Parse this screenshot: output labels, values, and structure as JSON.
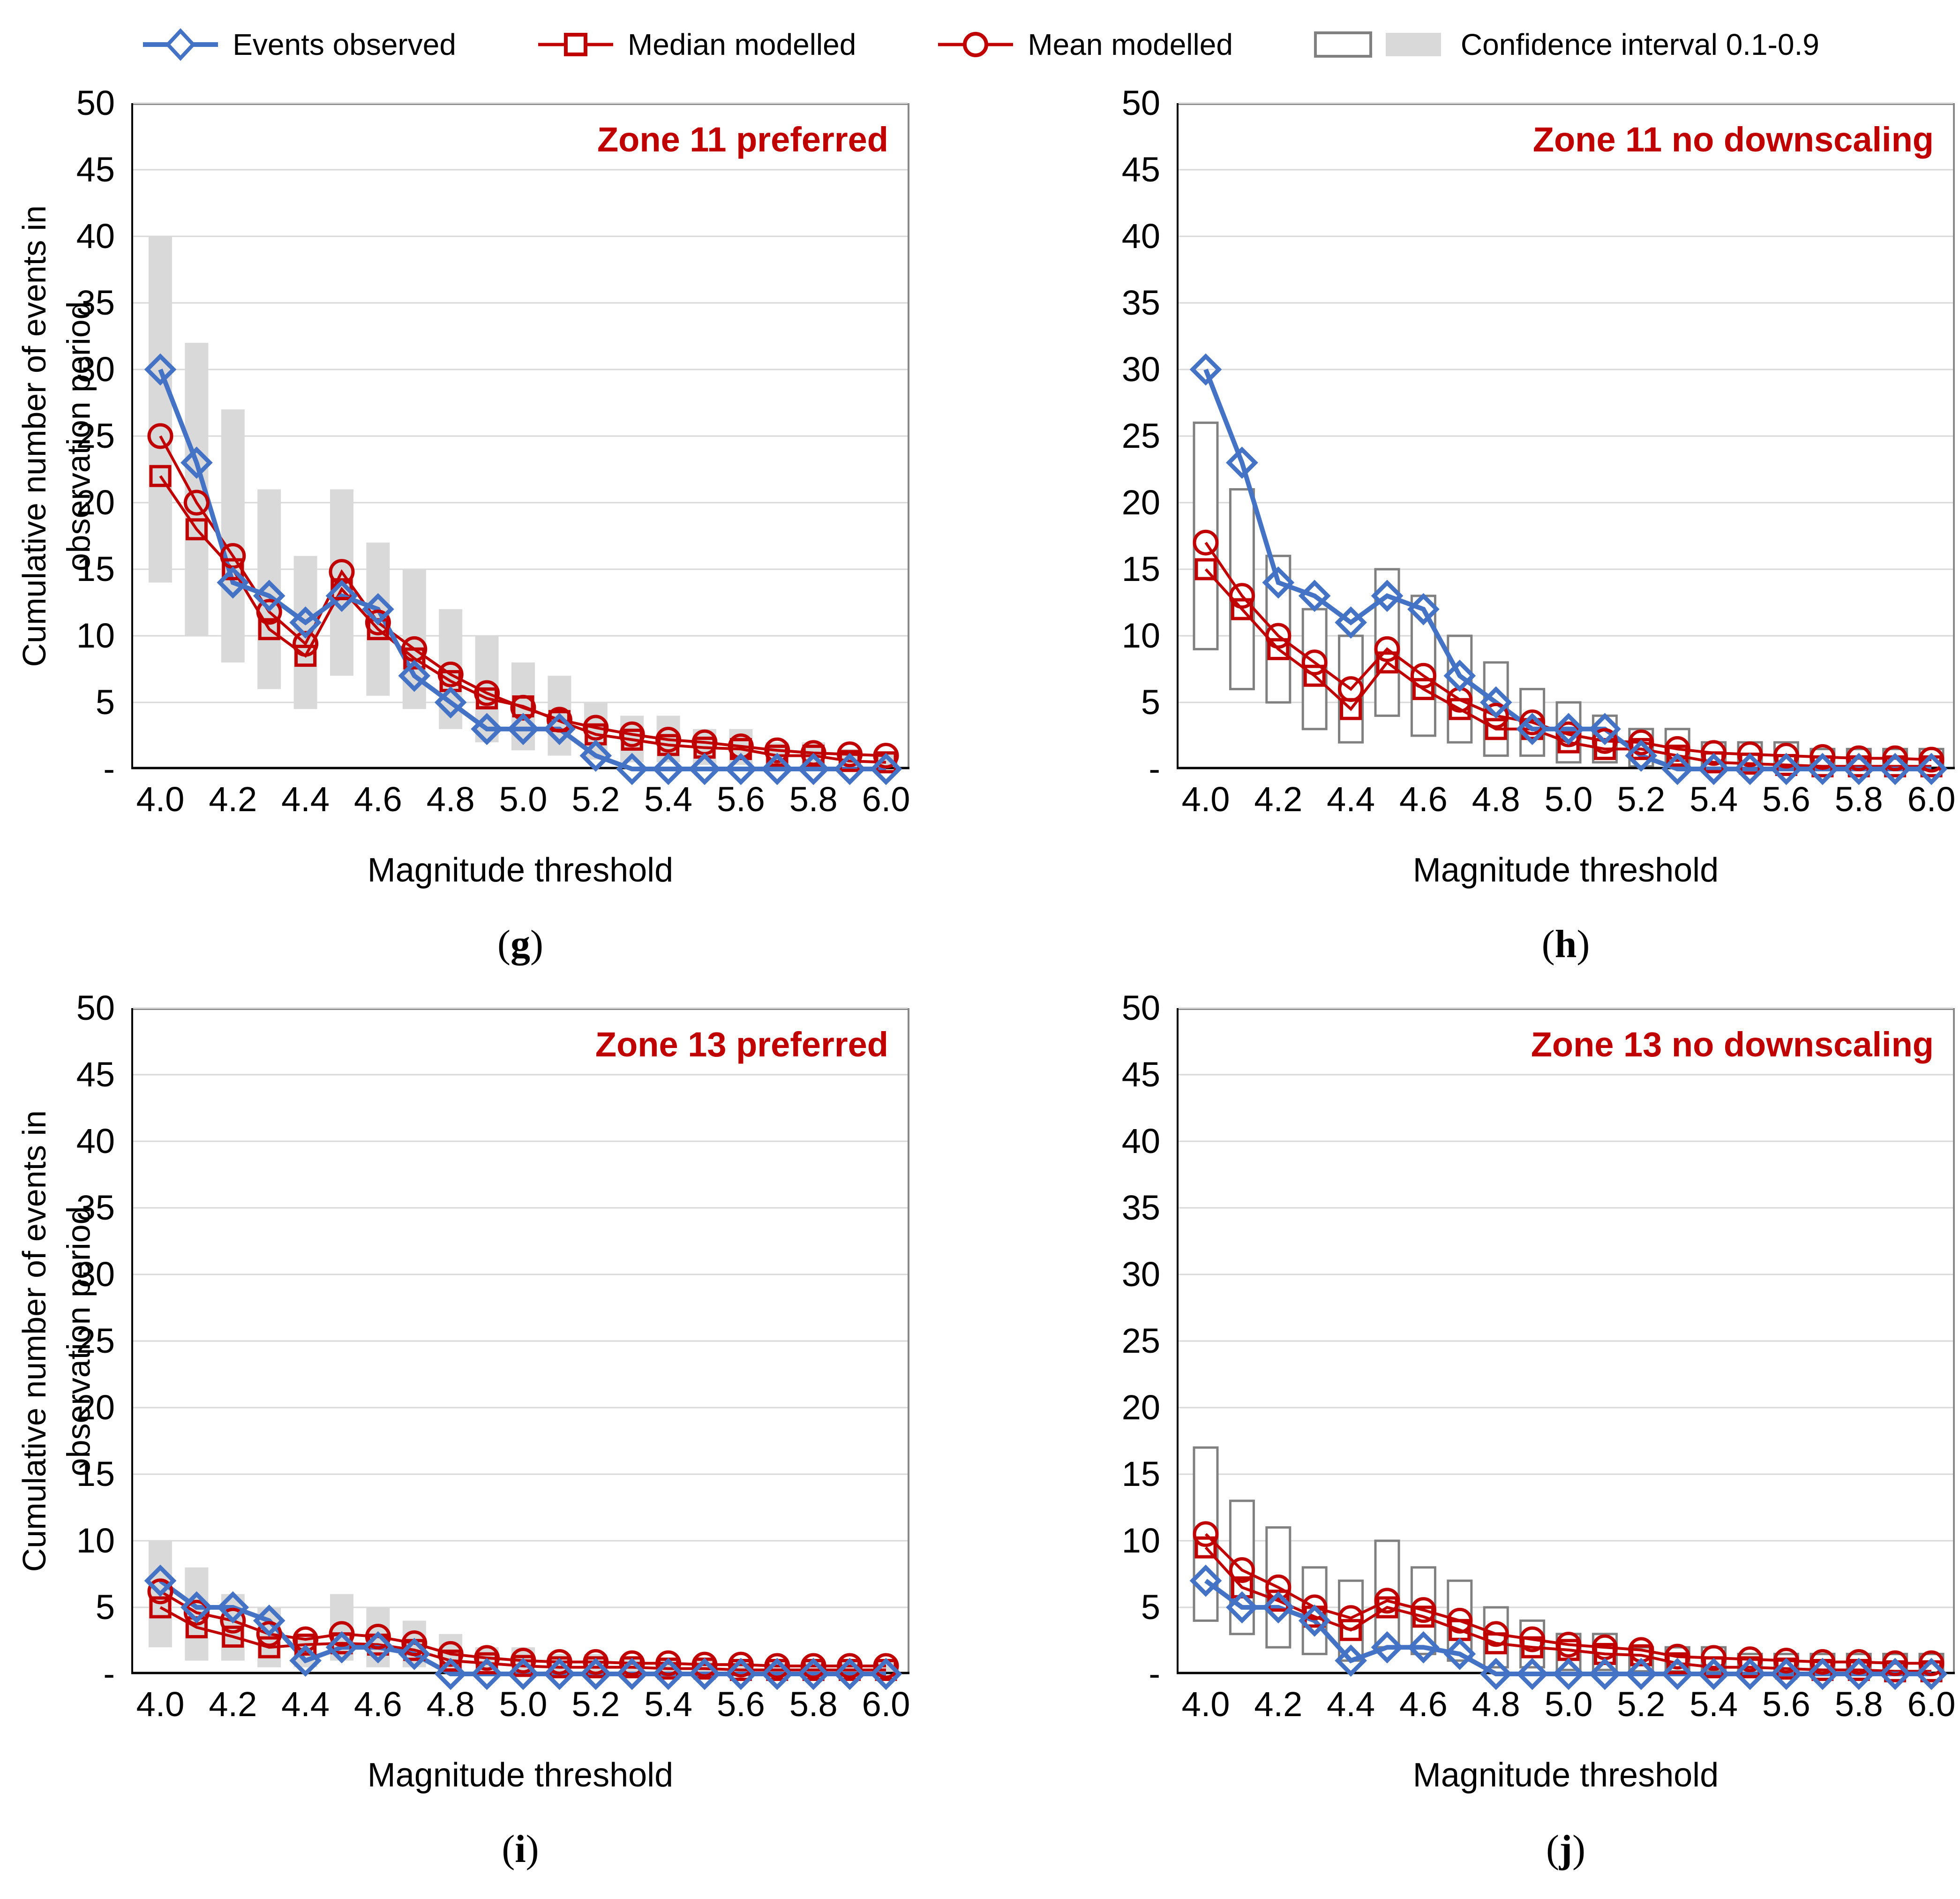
{
  "figure": {
    "legend": [
      {
        "label": "Events observed",
        "marker": "diamond",
        "color": "#4472C4"
      },
      {
        "label": "Median modelled",
        "marker": "square",
        "color": "#C00000"
      },
      {
        "label": "Mean modelled",
        "marker": "circle",
        "color": "#C00000"
      },
      {
        "label": "Confidence interval 0.1-0.9",
        "marker": "ci-boxes",
        "outline_color": "#808080",
        "fill_color": "#D9D9D9"
      }
    ],
    "y_axis_title_line1": "Cumulative number of events in",
    "y_axis_title_line2": "observation period",
    "x_axis_title": "Magnitude threshold",
    "y_ticks": [
      "50",
      "45",
      "40",
      "35",
      "30",
      "25",
      "20",
      "15",
      "10",
      "5",
      "-"
    ],
    "x_ticks": [
      "4.0",
      "4.2",
      "4.4",
      "4.6",
      "4.8",
      "5.0",
      "5.2",
      "5.4",
      "5.6",
      "5.8",
      "6.0"
    ],
    "sublabel_open": "(",
    "sublabel_close": ")",
    "colors": {
      "observed": "#4472C4",
      "modelled": "#C00000",
      "ci_fill": "#D9D9D9",
      "ci_outline": "#808080",
      "grid": "#D9D9D9",
      "plot_border": "#898989",
      "axis": "#000000",
      "title": "#C00000"
    }
  },
  "chart_data": [
    {
      "type": "line",
      "title": "Zone 11 preferred",
      "panel_letter": "g",
      "ci_style": "filled",
      "xlabel": "Magnitude threshold",
      "ylabel": "Cumulative number of events in observation period",
      "ylim": [
        0,
        50
      ],
      "x": [
        4.0,
        4.1,
        4.2,
        4.3,
        4.4,
        4.5,
        4.6,
        4.7,
        4.8,
        4.9,
        5.0,
        5.1,
        5.2,
        5.3,
        5.4,
        5.5,
        5.6,
        5.7,
        5.8,
        5.9,
        6.0
      ],
      "series": [
        {
          "name": "Events observed",
          "values": [
            30,
            23,
            14,
            13,
            11,
            13,
            12,
            7,
            5,
            3,
            3,
            3,
            1,
            0,
            0,
            0,
            0,
            0,
            0,
            0,
            0
          ]
        },
        {
          "name": "Median modelled",
          "values": [
            22,
            18,
            15,
            10.5,
            8.5,
            13.5,
            10.5,
            8.3,
            6.6,
            5.3,
            4.7,
            3.6,
            2.6,
            2.2,
            1.8,
            1.6,
            1.5,
            1,
            1,
            0.6,
            0.5
          ]
        },
        {
          "name": "Mean modelled",
          "values": [
            25,
            20,
            16,
            11.8,
            9.4,
            14.8,
            11,
            9,
            7.1,
            5.7,
            4.6,
            3.7,
            3.1,
            2.6,
            2.2,
            2,
            1.7,
            1.4,
            1.2,
            1.1,
            1
          ]
        },
        {
          "name": "CI low 0.1",
          "values": [
            14,
            10,
            8,
            6,
            4.5,
            7,
            5.5,
            4.5,
            3,
            2,
            1.4,
            1,
            0.7,
            0.5,
            0.5,
            0.3,
            0.3,
            0.2,
            0.2,
            0.2,
            0.2
          ]
        },
        {
          "name": "CI high 0.9",
          "values": [
            40,
            32,
            27,
            21,
            16,
            21,
            17,
            15,
            12,
            10,
            8,
            7,
            5,
            4,
            4,
            3,
            3,
            2,
            2,
            1.5,
            1.2
          ]
        }
      ]
    },
    {
      "type": "line",
      "title": "Zone 11 no downscaling",
      "panel_letter": "h",
      "ci_style": "outlined",
      "xlabel": "Magnitude threshold",
      "ylabel": "Cumulative number of events in observation period",
      "ylim": [
        0,
        50
      ],
      "x": [
        4.0,
        4.1,
        4.2,
        4.3,
        4.4,
        4.5,
        4.6,
        4.7,
        4.8,
        4.9,
        5.0,
        5.1,
        5.2,
        5.3,
        5.4,
        5.5,
        5.6,
        5.7,
        5.8,
        5.9,
        6.0
      ],
      "series": [
        {
          "name": "Events observed",
          "values": [
            30,
            23,
            14,
            13,
            11,
            13,
            12,
            7,
            5,
            3,
            3,
            3,
            1,
            0,
            0,
            0,
            0,
            0,
            0,
            0,
            0
          ]
        },
        {
          "name": "Median modelled",
          "values": [
            15,
            12,
            9,
            7,
            4.5,
            8,
            6,
            4.5,
            3,
            3,
            2,
            1.5,
            1.5,
            1,
            0.5,
            0.4,
            0.3,
            0.2,
            0.2,
            0.2,
            0.2
          ]
        },
        {
          "name": "Mean modelled",
          "values": [
            17,
            13,
            10,
            8,
            6,
            9,
            7,
            5.2,
            4,
            3.5,
            2.6,
            2.1,
            2,
            1.5,
            1.2,
            1.1,
            1,
            0.9,
            0.8,
            0.8,
            0.7
          ]
        },
        {
          "name": "CI low 0.1",
          "values": [
            9,
            6,
            5,
            3,
            2,
            4,
            2.5,
            2,
            1,
            1,
            0.5,
            0.5,
            0.2,
            0.2,
            0.1,
            0.1,
            0.1,
            0.1,
            0.1,
            0.1,
            0.1
          ]
        },
        {
          "name": "CI high 0.9",
          "values": [
            26,
            21,
            16,
            12,
            10,
            15,
            13,
            10,
            8,
            6,
            5,
            4,
            3,
            3,
            2,
            2,
            2,
            1.5,
            1.5,
            1.5,
            1.5
          ]
        }
      ]
    },
    {
      "type": "line",
      "title": "Zone 13 preferred",
      "panel_letter": "i",
      "ci_style": "filled",
      "xlabel": "Magnitude threshold",
      "ylabel": "Cumulative number of events in observation period",
      "ylim": [
        0,
        50
      ],
      "x": [
        4.0,
        4.1,
        4.2,
        4.3,
        4.4,
        4.5,
        4.6,
        4.7,
        4.8,
        4.9,
        5.0,
        5.1,
        5.2,
        5.3,
        5.4,
        5.5,
        5.6,
        5.7,
        5.8,
        5.9,
        6.0
      ],
      "series": [
        {
          "name": "Events observed",
          "values": [
            7,
            5,
            5,
            4,
            1,
            2,
            2,
            1.5,
            0,
            0,
            0,
            0,
            0,
            0,
            0,
            0,
            0,
            0,
            0,
            0,
            0
          ]
        },
        {
          "name": "Median modelled",
          "values": [
            5,
            3.5,
            2.8,
            2,
            2.2,
            2.3,
            2.2,
            1.8,
            1,
            0.8,
            0.6,
            0.5,
            0.5,
            0.5,
            0.4,
            0.4,
            0.3,
            0.3,
            0.3,
            0.3,
            0.3
          ]
        },
        {
          "name": "Mean modelled",
          "values": [
            6.2,
            4.6,
            4,
            3,
            2.6,
            3,
            2.8,
            2.3,
            1.5,
            1.2,
            1,
            0.9,
            0.9,
            0.8,
            0.8,
            0.7,
            0.7,
            0.6,
            0.6,
            0.6,
            0.6
          ]
        },
        {
          "name": "CI low 0.1",
          "values": [
            2,
            1,
            1,
            0.5,
            0.5,
            1,
            0.5,
            0.5,
            0,
            0,
            0,
            0,
            0,
            0,
            0,
            0,
            0,
            0,
            0,
            0,
            0
          ]
        },
        {
          "name": "CI high 0.9",
          "values": [
            10,
            8,
            6,
            5,
            3,
            6,
            5,
            4,
            3,
            2,
            2,
            1.5,
            1.5,
            1.2,
            1.2,
            1,
            1,
            1,
            1,
            1,
            1
          ]
        }
      ]
    },
    {
      "type": "line",
      "title": "Zone 13 no downscaling",
      "panel_letter": "j",
      "ci_style": "outlined",
      "xlabel": "Magnitude threshold",
      "ylabel": "Cumulative number of events in observation period",
      "ylim": [
        0,
        50
      ],
      "x": [
        4.0,
        4.1,
        4.2,
        4.3,
        4.4,
        4.5,
        4.6,
        4.7,
        4.8,
        4.9,
        5.0,
        5.1,
        5.2,
        5.3,
        5.4,
        5.5,
        5.6,
        5.7,
        5.8,
        5.9,
        6.0
      ],
      "series": [
        {
          "name": "Events observed",
          "values": [
            7,
            5,
            5,
            4,
            1,
            2,
            2,
            1.5,
            0,
            0,
            0,
            0,
            0,
            0,
            0,
            0,
            0,
            0,
            0,
            0,
            0
          ]
        },
        {
          "name": "Median modelled",
          "values": [
            9.5,
            6.5,
            5.5,
            4.3,
            3.3,
            5,
            4.3,
            3.3,
            2.3,
            2,
            1.8,
            1.5,
            1.4,
            0.8,
            0.5,
            0.5,
            0.4,
            0.3,
            0.3,
            0.2,
            0.2
          ]
        },
        {
          "name": "Mean modelled",
          "values": [
            10.5,
            7.8,
            6.5,
            5,
            4.2,
            5.5,
            4.8,
            4,
            3,
            2.6,
            2.2,
            2,
            1.8,
            1.3,
            1.2,
            1.1,
            1,
            0.9,
            0.9,
            0.8,
            0.8
          ]
        },
        {
          "name": "CI low 0.1",
          "values": [
            4,
            3,
            2,
            1.5,
            1,
            2,
            1.5,
            1,
            0.5,
            0.5,
            0.3,
            0.3,
            0.2,
            0.2,
            0.2,
            0.1,
            0.1,
            0.1,
            0.1,
            0.1,
            0.1
          ]
        },
        {
          "name": "CI high 0.9",
          "values": [
            17,
            13,
            11,
            8,
            7,
            10,
            8,
            7,
            5,
            4,
            3,
            3,
            2,
            2,
            2,
            1.5,
            1.5,
            1.5,
            1.5,
            1.5,
            1.5
          ]
        }
      ]
    }
  ]
}
